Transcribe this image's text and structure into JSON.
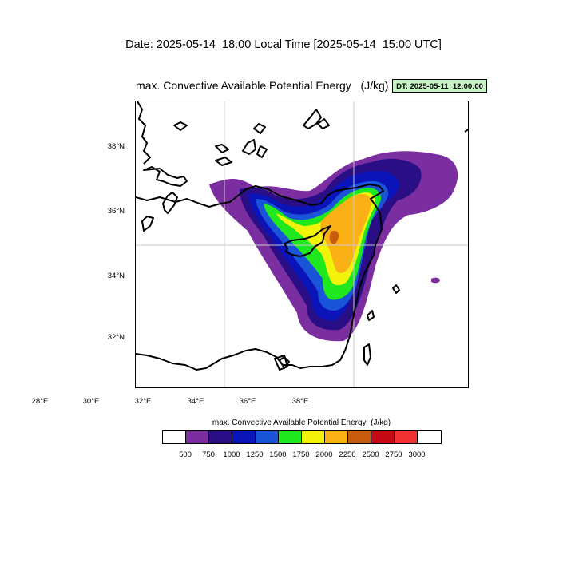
{
  "header": {
    "date_line": "Date: 2025-05-14  18:00 Local Time [2025-05-14  15:00 UTC]",
    "plot_title": "max. Convective Available Potential Energy   (J/kg)",
    "dt_badge": "DT: 2025-05-11_12:00:00"
  },
  "map": {
    "lon_ticks": [
      "28°E",
      "30°E",
      "32°E",
      "34°E",
      "36°E",
      "38°E"
    ],
    "lat_ticks": [
      "38°N",
      "36°N",
      "34°N",
      "32°N"
    ],
    "gridlines": "30°E, 35°E, 35°N",
    "colors": {
      "coastline": "#000000",
      "grid": "#c8c8c8"
    }
  },
  "colorbar": {
    "title": "max. Convective Available Potential Energy  (J/kg)",
    "levels": [
      "500",
      "750",
      "1000",
      "1250",
      "1500",
      "1750",
      "2000",
      "2250",
      "2500",
      "2750",
      "3000"
    ],
    "colors": [
      "#ffffff",
      "#7a2ea0",
      "#2a0e86",
      "#0b14b8",
      "#1a54d8",
      "#1fe81f",
      "#f2f20a",
      "#fbb016",
      "#c85a0c",
      "#c40a14",
      "#f23232",
      "#ffffff"
    ]
  }
}
